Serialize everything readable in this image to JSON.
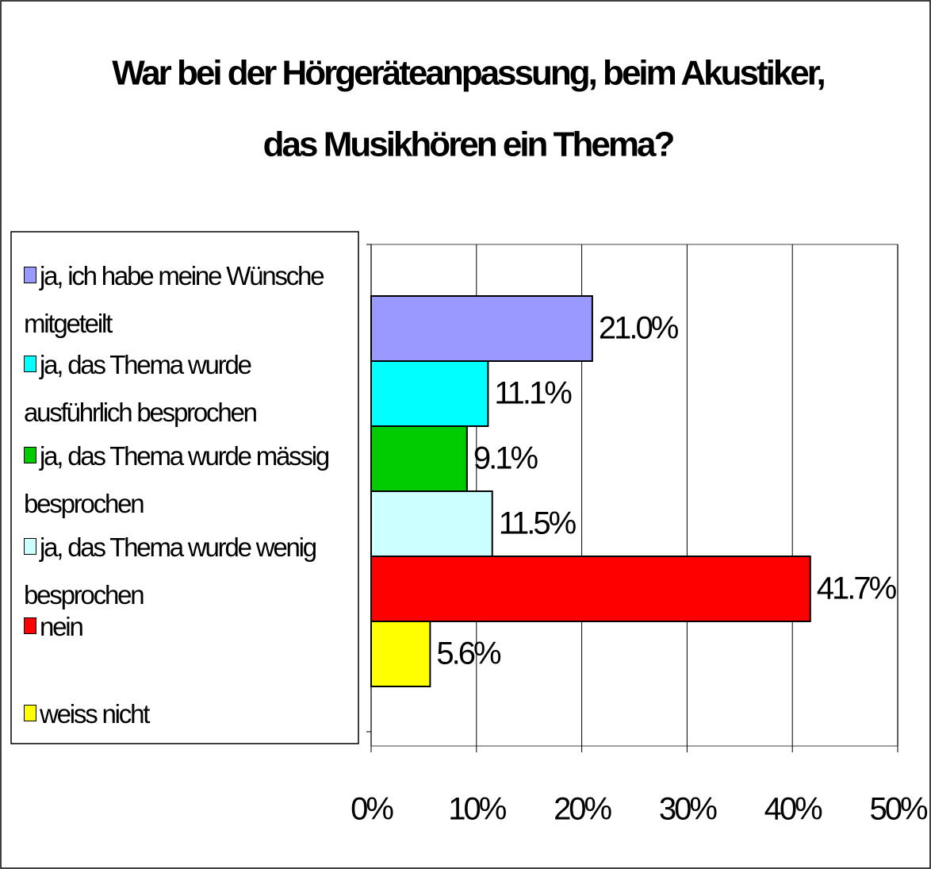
{
  "chart_data": {
    "type": "bar",
    "orientation": "horizontal",
    "title": [
      "War bei der Hörgeräteanpassung, beim Akustiker,",
      "das Musikhören ein Thema?"
    ],
    "series": [
      {
        "name": "ja, ich habe meine Wünsche mitgeteilt",
        "color": "#9999ff",
        "values": [
          21.0
        ],
        "value_labels": [
          "21.0%"
        ]
      },
      {
        "name": "ja, das Thema wurde ausführlich besprochen",
        "color": "#00ffff",
        "values": [
          11.1
        ],
        "value_labels": [
          "11.1%"
        ]
      },
      {
        "name": "ja, das Thema wurde mässig besprochen",
        "color": "#00cc00",
        "values": [
          9.1
        ],
        "value_labels": [
          "9.1%"
        ]
      },
      {
        "name": "ja, das Thema wurde wenig besprochen",
        "color": "#ccffff",
        "values": [
          11.5
        ],
        "value_labels": [
          "11.5%"
        ]
      },
      {
        "name": "nein",
        "color": "#ff0000",
        "values": [
          41.7
        ],
        "value_labels": [
          "41.7%"
        ]
      },
      {
        "name": "weiss nicht",
        "color": "#ffff00",
        "values": [
          5.6
        ],
        "value_labels": [
          "5.6%"
        ]
      }
    ],
    "xlim": [
      0,
      50
    ],
    "xticks": [
      {
        "value": 0,
        "label": "0%"
      },
      {
        "value": 10,
        "label": "10%"
      },
      {
        "value": 20,
        "label": "20%"
      },
      {
        "value": 30,
        "label": "30%"
      },
      {
        "value": 40,
        "label": "40%"
      },
      {
        "value": 50,
        "label": "50%"
      }
    ],
    "grid": true
  }
}
